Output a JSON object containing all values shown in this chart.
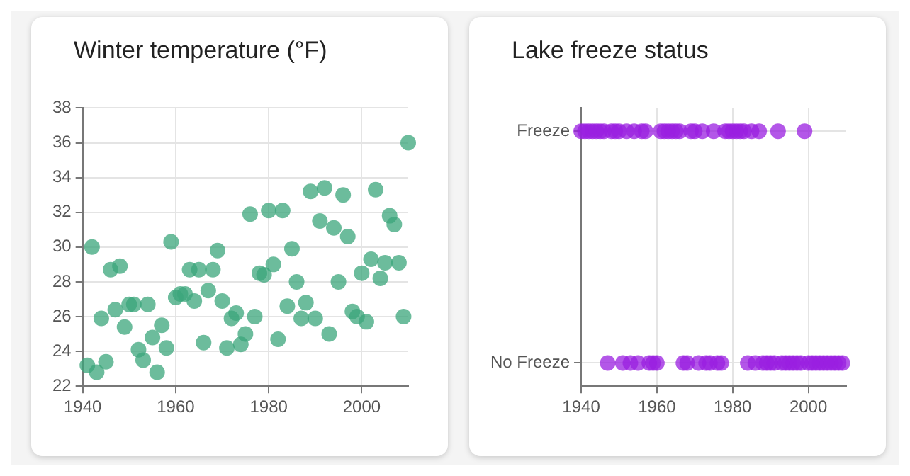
{
  "chart_data": [
    {
      "type": "scatter",
      "title": "Winter temperature (°F)",
      "color": "#3ba57b",
      "x": [
        1941,
        1942,
        1943,
        1944,
        1945,
        1946,
        1947,
        1948,
        1949,
        1950,
        1951,
        1952,
        1953,
        1954,
        1955,
        1956,
        1957,
        1958,
        1959,
        1960,
        1961,
        1962,
        1963,
        1964,
        1965,
        1966,
        1967,
        1968,
        1969,
        1970,
        1971,
        1972,
        1973,
        1974,
        1975,
        1976,
        1977,
        1978,
        1979,
        1980,
        1981,
        1982,
        1983,
        1984,
        1985,
        1986,
        1987,
        1988,
        1989,
        1990,
        1991,
        1992,
        1993,
        1994,
        1995,
        1996,
        1997,
        1998,
        1999,
        2000,
        2001,
        2002,
        2003,
        2004,
        2005,
        2006,
        2007,
        2008,
        2009,
        2010
      ],
      "values": [
        23.2,
        30.0,
        22.8,
        25.9,
        23.4,
        28.7,
        26.4,
        28.9,
        25.4,
        26.7,
        26.7,
        24.1,
        23.5,
        26.7,
        24.8,
        22.8,
        25.5,
        24.2,
        30.3,
        27.1,
        27.3,
        27.3,
        28.7,
        26.9,
        28.7,
        24.5,
        27.5,
        28.7,
        29.8,
        26.9,
        24.2,
        25.9,
        26.2,
        24.4,
        25.0,
        31.9,
        26.0,
        28.5,
        28.4,
        32.1,
        29.0,
        24.7,
        32.1,
        26.6,
        29.9,
        28.0,
        25.9,
        26.8,
        33.2,
        25.9,
        31.5,
        33.4,
        25.0,
        31.1,
        28.0,
        33.0,
        30.6,
        26.3,
        26.0,
        28.5,
        25.7,
        29.3,
        33.3,
        28.2,
        29.1,
        31.8,
        31.3,
        29.1,
        26.0,
        36.0
      ],
      "xlim": [
        1940,
        2010
      ],
      "xticks": [
        1940,
        1960,
        1980,
        2000
      ],
      "ylim": [
        22,
        38
      ],
      "yticks": [
        22,
        24,
        26,
        28,
        30,
        32,
        34,
        36,
        38
      ],
      "grid": true,
      "marker": "circle"
    },
    {
      "type": "scatter",
      "title": "Lake freeze status",
      "orientation": "horizontal",
      "categories": [
        "Freeze",
        "No Freeze"
      ],
      "series": [
        {
          "color": "#9a1fe0",
          "values": [
            1940,
            1941,
            1942,
            1943,
            1944,
            1945,
            1946,
            1947,
            1948,
            1949,
            1950,
            1951,
            1952,
            1953,
            1954,
            1955,
            1956,
            1957,
            1958,
            1959,
            1960,
            1961,
            1962,
            1963,
            1964,
            1965,
            1966,
            1967,
            1968,
            1969,
            1970,
            1971,
            1972,
            1973,
            1974,
            1975,
            1976,
            1977,
            1978,
            1979,
            1980,
            1981,
            1982,
            1983,
            1984,
            1985,
            1986,
            1987,
            1988,
            1989,
            1990,
            1991,
            1992,
            1993,
            1994,
            1995,
            1996,
            1997,
            1998,
            1999,
            2000,
            2001,
            2002,
            2003,
            2004,
            2005,
            2006,
            2007,
            2008,
            2009
          ],
          "x": [
            "Freeze",
            "Freeze",
            "Freeze",
            "Freeze",
            "Freeze",
            "Freeze",
            "Freeze",
            "No Freeze",
            "Freeze",
            "Freeze",
            "Freeze",
            "No Freeze",
            "Freeze",
            "No Freeze",
            "Freeze",
            "No Freeze",
            "Freeze",
            "Freeze",
            "No Freeze",
            "No Freeze",
            "No Freeze",
            "Freeze",
            "Freeze",
            "Freeze",
            "Freeze",
            "Freeze",
            "Freeze",
            "No Freeze",
            "No Freeze",
            "Freeze",
            "Freeze",
            "No Freeze",
            "Freeze",
            "No Freeze",
            "No Freeze",
            "Freeze",
            "No Freeze",
            "No Freeze",
            "Freeze",
            "Freeze",
            "Freeze",
            "Freeze",
            "Freeze",
            "Freeze",
            "No Freeze",
            "Freeze",
            "No Freeze",
            "Freeze",
            "No Freeze",
            "No Freeze",
            "No Freeze",
            "No Freeze",
            "Freeze",
            "No Freeze",
            "No Freeze",
            "No Freeze",
            "No Freeze",
            "No Freeze",
            "No Freeze",
            "Freeze",
            "No Freeze",
            "No Freeze",
            "No Freeze",
            "No Freeze",
            "No Freeze",
            "No Freeze",
            "No Freeze",
            "No Freeze",
            "No Freeze",
            "No Freeze"
          ]
        }
      ],
      "xlim": [
        1940,
        2010
      ],
      "xticks": [
        1940,
        1960,
        1980,
        2000
      ],
      "grid": true,
      "marker": "circle"
    }
  ]
}
